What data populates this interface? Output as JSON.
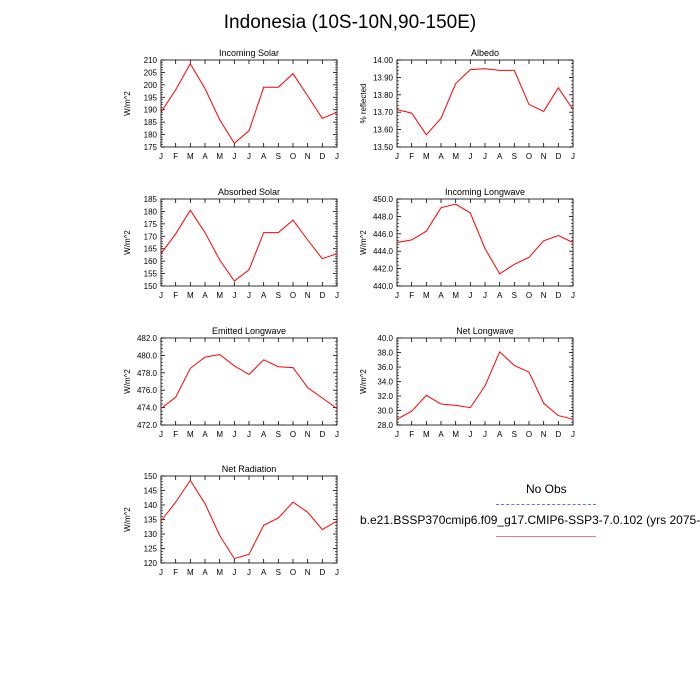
{
  "title": "Indonesia (10S-10N,90-150E)",
  "legend": {
    "obs_label": "No Obs",
    "model_label": "b.e21.BSSP370cmip6.f09_g17.CMIP6-SSP3-7.0.102 (yrs 2075-",
    "obs_color": "#6b6bff",
    "model_color": "#e08080"
  },
  "colors": {
    "line": "#ff0000",
    "axis": "#000000"
  },
  "chart_data": [
    {
      "type": "line",
      "title": "Incoming Solar",
      "ylabel": "W/m^2",
      "categories": [
        "J",
        "F",
        "M",
        "A",
        "M",
        "J",
        "J",
        "A",
        "S",
        "O",
        "N",
        "D",
        "J"
      ],
      "values": [
        189,
        198,
        208.5,
        198.5,
        186,
        176.5,
        181.5,
        199,
        199,
        204.5,
        195.5,
        186.5,
        189
      ],
      "ylim": [
        175,
        210
      ],
      "yticks": [
        "175",
        "180",
        "185",
        "190",
        "195",
        "200",
        "205",
        "210"
      ],
      "yticks_values": [
        175,
        180,
        185,
        190,
        195,
        200,
        205,
        210
      ]
    },
    {
      "type": "line",
      "title": "Albedo",
      "ylabel": "% reflected",
      "categories": [
        "J",
        "F",
        "M",
        "A",
        "M",
        "J",
        "J",
        "A",
        "S",
        "O",
        "N",
        "D",
        "J"
      ],
      "values": [
        13.715,
        13.695,
        13.57,
        13.665,
        13.865,
        13.945,
        13.95,
        13.94,
        13.94,
        13.745,
        13.705,
        13.84,
        13.715
      ],
      "ylim": [
        13.5,
        14.0
      ],
      "yticks": [
        "13.50",
        "13.60",
        "13.70",
        "13.80",
        "13.90",
        "14.00"
      ],
      "yticks_values": [
        13.5,
        13.6,
        13.7,
        13.8,
        13.9,
        14.0
      ]
    },
    {
      "type": "line",
      "title": "Absorbed Solar",
      "ylabel": "W/m^2",
      "categories": [
        "J",
        "F",
        "M",
        "A",
        "M",
        "J",
        "J",
        "A",
        "S",
        "O",
        "N",
        "D",
        "J"
      ],
      "values": [
        163,
        171,
        180.5,
        171.5,
        160.5,
        152,
        156.5,
        171.5,
        171.5,
        176.5,
        168.5,
        161,
        163
      ],
      "ylim": [
        150,
        185
      ],
      "yticks": [
        "150",
        "155",
        "160",
        "165",
        "170",
        "175",
        "180",
        "185"
      ],
      "yticks_values": [
        150,
        155,
        160,
        165,
        170,
        175,
        180,
        185
      ]
    },
    {
      "type": "line",
      "title": "Incoming Longwave",
      "ylabel": "W/m^2",
      "categories": [
        "J",
        "F",
        "M",
        "A",
        "M",
        "J",
        "J",
        "A",
        "S",
        "O",
        "N",
        "D",
        "J"
      ],
      "values": [
        445.0,
        445.3,
        446.3,
        449.0,
        449.4,
        448.4,
        444.3,
        441.4,
        442.5,
        443.3,
        445.2,
        445.8,
        445.0
      ],
      "ylim": [
        440.0,
        450.0
      ],
      "yticks": [
        "440.0",
        "442.0",
        "444.0",
        "446.0",
        "448.0",
        "450.0"
      ],
      "yticks_values": [
        440,
        442,
        444,
        446,
        448,
        450
      ]
    },
    {
      "type": "line",
      "title": "Emitted Longwave",
      "ylabel": "W/m^2",
      "categories": [
        "J",
        "F",
        "M",
        "A",
        "M",
        "J",
        "J",
        "A",
        "S",
        "O",
        "N",
        "D",
        "J"
      ],
      "values": [
        473.9,
        475.2,
        478.5,
        479.8,
        480.1,
        478.8,
        477.8,
        479.5,
        478.7,
        478.6,
        476.3,
        475.1,
        473.9
      ],
      "ylim": [
        472.0,
        482.0
      ],
      "yticks": [
        "472.0",
        "474.0",
        "476.0",
        "478.0",
        "480.0",
        "482.0"
      ],
      "yticks_values": [
        472,
        474,
        476,
        478,
        480,
        482
      ]
    },
    {
      "type": "line",
      "title": "Net Longwave",
      "ylabel": "W/m^2",
      "categories": [
        "J",
        "F",
        "M",
        "A",
        "M",
        "J",
        "J",
        "A",
        "S",
        "O",
        "N",
        "D",
        "J"
      ],
      "values": [
        28.8,
        29.9,
        32.1,
        30.9,
        30.7,
        30.4,
        33.4,
        38.1,
        36.2,
        35.3,
        31.0,
        29.3,
        28.8
      ],
      "ylim": [
        28.0,
        40.0
      ],
      "yticks": [
        "28.0",
        "30.0",
        "32.0",
        "34.0",
        "36.0",
        "38.0",
        "40.0"
      ],
      "yticks_values": [
        28,
        30,
        32,
        34,
        36,
        38,
        40
      ]
    },
    {
      "type": "line",
      "title": "Net Radiation",
      "ylabel": "W/m^2",
      "categories": [
        "J",
        "F",
        "M",
        "A",
        "M",
        "J",
        "J",
        "A",
        "S",
        "O",
        "N",
        "D",
        "J"
      ],
      "values": [
        134.5,
        141,
        148.5,
        140.5,
        129.5,
        121.5,
        123,
        133,
        135.5,
        141,
        137.5,
        131.5,
        134.5
      ],
      "ylim": [
        120,
        150
      ],
      "yticks": [
        "120",
        "125",
        "130",
        "135",
        "140",
        "145",
        "150"
      ],
      "yticks_values": [
        120,
        125,
        130,
        135,
        140,
        145,
        150
      ]
    }
  ]
}
